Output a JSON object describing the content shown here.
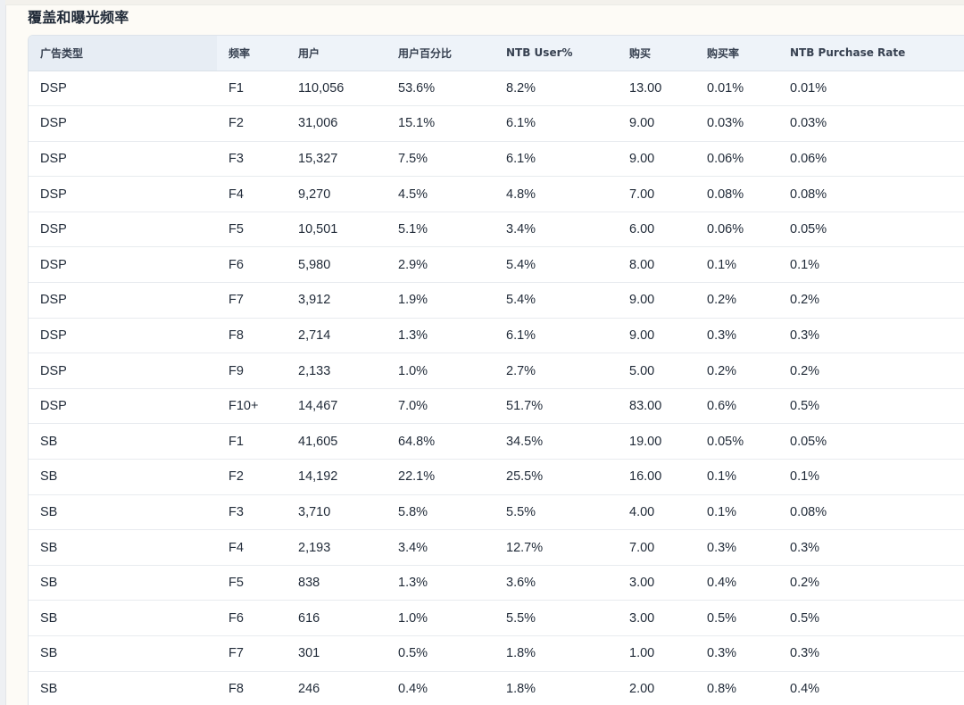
{
  "section": {
    "title": "覆盖和曝光频率"
  },
  "table": {
    "headers": [
      "广告类型",
      "频率",
      "用户",
      "用户百分比",
      "NTB User%",
      "购买",
      "购买率",
      "NTB Purchase Rate"
    ],
    "rows": [
      [
        "DSP",
        "F1",
        "110,056",
        "53.6%",
        "8.2%",
        "13.00",
        "0.01%",
        "0.01%"
      ],
      [
        "DSP",
        "F2",
        "31,006",
        "15.1%",
        "6.1%",
        "9.00",
        "0.03%",
        "0.03%"
      ],
      [
        "DSP",
        "F3",
        "15,327",
        "7.5%",
        "6.1%",
        "9.00",
        "0.06%",
        "0.06%"
      ],
      [
        "DSP",
        "F4",
        "9,270",
        "4.5%",
        "4.8%",
        "7.00",
        "0.08%",
        "0.08%"
      ],
      [
        "DSP",
        "F5",
        "10,501",
        "5.1%",
        "3.4%",
        "6.00",
        "0.06%",
        "0.05%"
      ],
      [
        "DSP",
        "F6",
        "5,980",
        "2.9%",
        "5.4%",
        "8.00",
        "0.1%",
        "0.1%"
      ],
      [
        "DSP",
        "F7",
        "3,912",
        "1.9%",
        "5.4%",
        "9.00",
        "0.2%",
        "0.2%"
      ],
      [
        "DSP",
        "F8",
        "2,714",
        "1.3%",
        "6.1%",
        "9.00",
        "0.3%",
        "0.3%"
      ],
      [
        "DSP",
        "F9",
        "2,133",
        "1.0%",
        "2.7%",
        "5.00",
        "0.2%",
        "0.2%"
      ],
      [
        "DSP",
        "F10+",
        "14,467",
        "7.0%",
        "51.7%",
        "83.00",
        "0.6%",
        "0.5%"
      ],
      [
        "SB",
        "F1",
        "41,605",
        "64.8%",
        "34.5%",
        "19.00",
        "0.05%",
        "0.05%"
      ],
      [
        "SB",
        "F2",
        "14,192",
        "22.1%",
        "25.5%",
        "16.00",
        "0.1%",
        "0.1%"
      ],
      [
        "SB",
        "F3",
        "3,710",
        "5.8%",
        "5.5%",
        "4.00",
        "0.1%",
        "0.08%"
      ],
      [
        "SB",
        "F4",
        "2,193",
        "3.4%",
        "12.7%",
        "7.00",
        "0.3%",
        "0.3%"
      ],
      [
        "SB",
        "F5",
        "838",
        "1.3%",
        "3.6%",
        "3.00",
        "0.4%",
        "0.2%"
      ],
      [
        "SB",
        "F6",
        "616",
        "1.0%",
        "5.5%",
        "3.00",
        "0.5%",
        "0.5%"
      ],
      [
        "SB",
        "F7",
        "301",
        "0.5%",
        "1.8%",
        "1.00",
        "0.3%",
        "0.3%"
      ],
      [
        "SB",
        "F8",
        "246",
        "0.4%",
        "1.8%",
        "2.00",
        "0.8%",
        "0.4%"
      ]
    ]
  }
}
